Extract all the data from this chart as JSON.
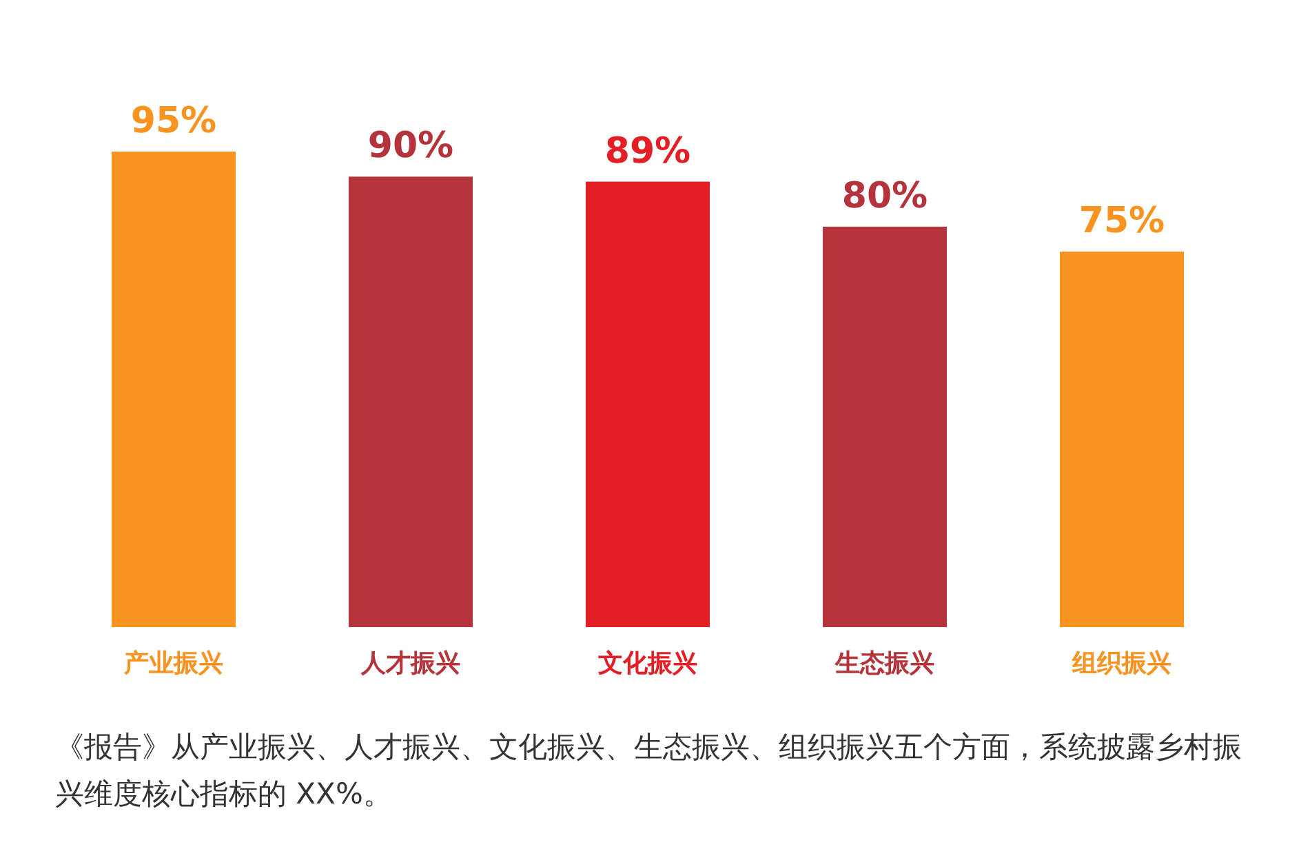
{
  "chart_data": {
    "type": "bar",
    "categories": [
      "产业振兴",
      "人才振兴",
      "文化振兴",
      "生态振兴",
      "组织振兴"
    ],
    "values": [
      95,
      90,
      89,
      80,
      75
    ],
    "colors": [
      "#f7931e",
      "#b5343c",
      "#e31e24",
      "#b5343c",
      "#f7931e"
    ],
    "value_labels": [
      "95%",
      "90%",
      "89%",
      "80%",
      "75%"
    ],
    "annotations": [
      "《报告》从产业振兴、人才振兴、文化振兴、生态振兴、组织振兴五个方面，系统披露乡村振兴维度核心指标的 XX%。"
    ]
  }
}
